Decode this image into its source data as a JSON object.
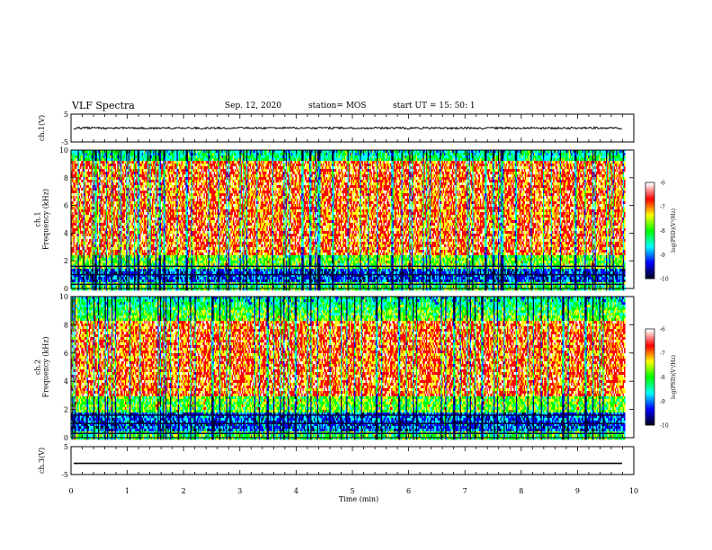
{
  "header": {
    "title": "VLF Spectra",
    "date": "Sep. 12, 2020",
    "station": "station= MOS",
    "start": "start  UT =   15: 50: 1"
  },
  "chart_data": [
    {
      "type": "line",
      "panel": "ch1-waveform",
      "ylabel": "ch.1(V)",
      "xlim": [
        0,
        10
      ],
      "ylim": [
        -5,
        5
      ],
      "yticks": [
        "5",
        "-5"
      ],
      "trace_level": 0
    },
    {
      "type": "heatmap",
      "panel": "ch1-spectrogram",
      "ylabel": "ch.1\nFrequency (kHz)",
      "xlim": [
        0,
        9.83
      ],
      "ylim": [
        0,
        10
      ],
      "yticks": [
        "0",
        "2",
        "4",
        "6",
        "8",
        "10"
      ],
      "colorbar": {
        "label": "log(PSD)(V²/Hz)",
        "range": [
          -10,
          -6
        ],
        "ticks": [
          "-6",
          "-7",
          "-8",
          "-9",
          "-10"
        ]
      },
      "strong_band_kHz": [
        2.5,
        9.3
      ],
      "quiet_band_kHz": [
        0.5,
        1.5
      ]
    },
    {
      "type": "heatmap",
      "panel": "ch2-spectrogram",
      "ylabel": "ch.2\nFrequency (kHz)",
      "xlim": [
        0,
        9.83
      ],
      "ylim": [
        0,
        10
      ],
      "yticks": [
        "0",
        "2",
        "4",
        "6",
        "8",
        "10"
      ],
      "colorbar": {
        "label": "log(PSD)(V²/Hz)",
        "range": [
          -10,
          -6
        ],
        "ticks": [
          "-6",
          "-7",
          "-8",
          "-9",
          "-10"
        ]
      },
      "strong_band_kHz": [
        3,
        8.3
      ],
      "quiet_band_kHz": [
        0.5,
        1.8
      ]
    },
    {
      "type": "line",
      "panel": "ch3-waveform",
      "ylabel": "ch.3(V)",
      "xlim": [
        0,
        10
      ],
      "ylim": [
        -5,
        5
      ],
      "yticks": [
        "5",
        "-5"
      ],
      "trace_level": -1
    }
  ],
  "xaxis": {
    "label": "Time (min)",
    "ticks": [
      "0",
      "1",
      "2",
      "3",
      "4",
      "5",
      "6",
      "7",
      "8",
      "9",
      "10"
    ]
  },
  "colors": {
    "palette": [
      "#000033",
      "#0000ff",
      "#00ffff",
      "#00ff00",
      "#ffff00",
      "#ff0000",
      "#ffffff"
    ]
  }
}
